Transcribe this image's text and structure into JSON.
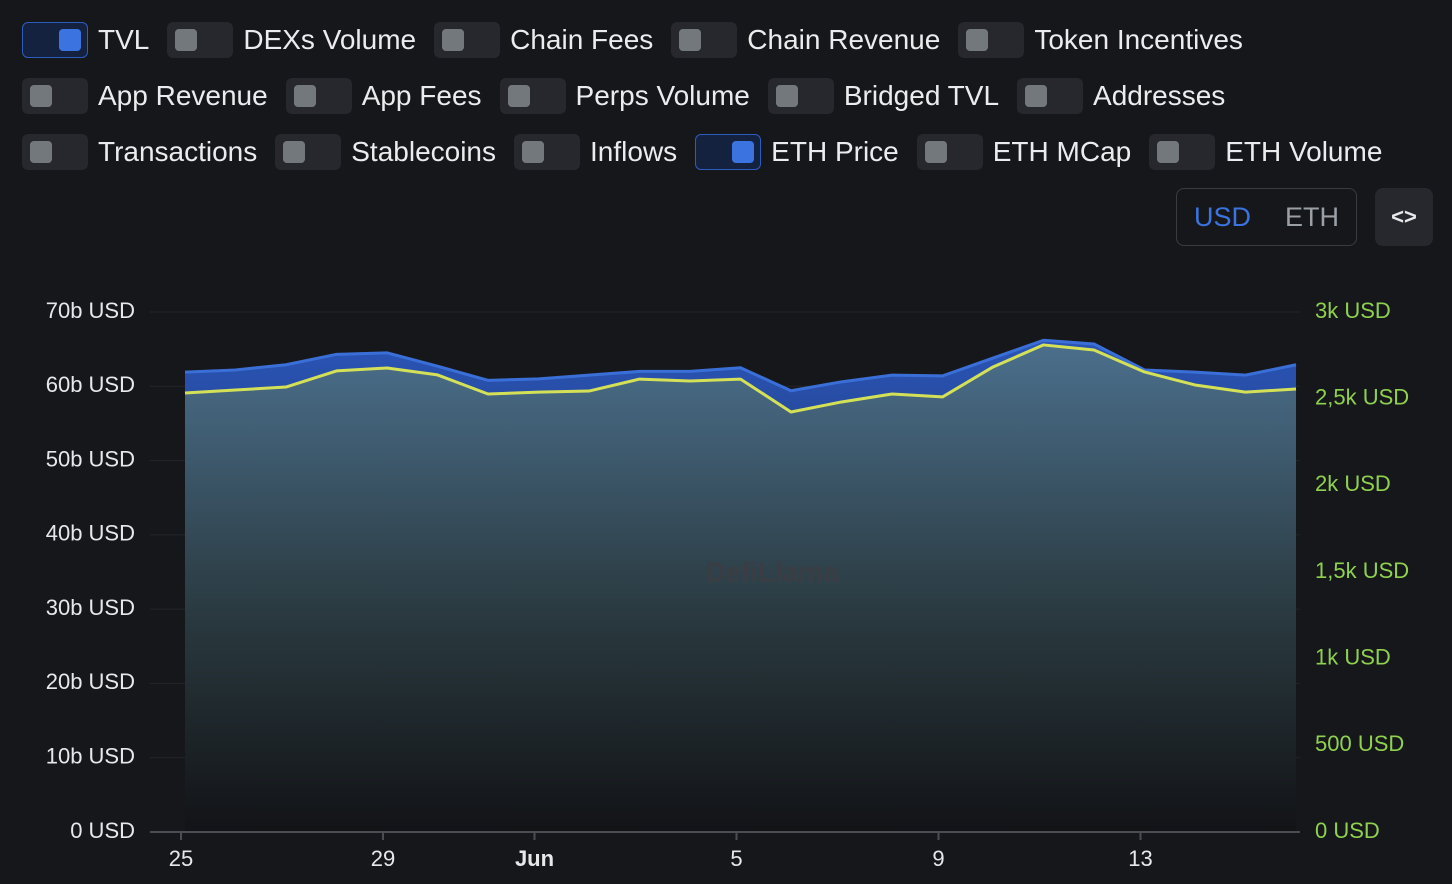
{
  "toggles": [
    [
      {
        "label": "TVL",
        "checked": true
      },
      {
        "label": "DEXs Volume",
        "checked": false
      },
      {
        "label": "Chain Fees",
        "checked": false
      },
      {
        "label": "Chain Revenue",
        "checked": false
      },
      {
        "label": "Token Incentives",
        "checked": false
      }
    ],
    [
      {
        "label": "App Revenue",
        "checked": false
      },
      {
        "label": "App Fees",
        "checked": false
      },
      {
        "label": "Perps Volume",
        "checked": false
      },
      {
        "label": "Bridged TVL",
        "checked": false
      },
      {
        "label": "Addresses",
        "checked": false
      }
    ],
    [
      {
        "label": "Transactions",
        "checked": false
      },
      {
        "label": "Stablecoins",
        "checked": false
      },
      {
        "label": "Inflows",
        "checked": false
      },
      {
        "label": "ETH Price",
        "checked": true
      },
      {
        "label": "ETH MCap",
        "checked": false
      },
      {
        "label": "ETH Volume",
        "checked": false
      }
    ]
  ],
  "currency": {
    "options": [
      "USD",
      "ETH"
    ],
    "selected": 0
  },
  "embed_button": "<>",
  "watermark": "DefiLlama",
  "chart_data": {
    "type": "area",
    "categories": [
      "25",
      null,
      null,
      null,
      "29",
      null,
      null,
      "Jun",
      null,
      null,
      null,
      "5",
      null,
      null,
      null,
      "9",
      null,
      null,
      null,
      "13",
      null,
      null,
      null
    ],
    "series": [
      {
        "name": "TVL",
        "color": "#3b6fd8",
        "values": [
          61.9,
          62.2,
          62.9,
          64.3,
          64.5,
          62.7,
          60.8,
          61.0,
          61.5,
          62.0,
          62.0,
          62.5,
          59.4,
          60.6,
          61.5,
          61.4,
          63.8,
          66.2,
          65.7,
          62.2,
          61.9,
          61.5,
          62.9
        ]
      },
      {
        "name": "ETH Price",
        "color": "#d4e157",
        "axis": "y2",
        "values": [
          2533,
          2550,
          2567,
          2660,
          2677,
          2637,
          2527,
          2538,
          2544,
          2613,
          2602,
          2613,
          2423,
          2481,
          2527,
          2510,
          2683,
          2810,
          2781,
          2654,
          2579,
          2538,
          2556
        ]
      }
    ],
    "ylim": [
      0,
      70
    ],
    "yticks": [
      {
        "value": 0,
        "label": "0 USD"
      },
      {
        "value": 10,
        "label": "10b USD"
      },
      {
        "value": 20,
        "label": "20b USD"
      },
      {
        "value": 30,
        "label": "30b USD"
      },
      {
        "value": 40,
        "label": "40b USD"
      },
      {
        "value": 50,
        "label": "50b USD"
      },
      {
        "value": 60,
        "label": "60b USD"
      },
      {
        "value": 70,
        "label": "70b USD"
      }
    ],
    "y2lim": [
      0,
      3000
    ],
    "y2ticks": [
      {
        "value": 0,
        "label": "0 USD"
      },
      {
        "value": 500,
        "label": "500 USD"
      },
      {
        "value": 1000,
        "label": "1k USD"
      },
      {
        "value": 1500,
        "label": "1,5k USD"
      },
      {
        "value": 2000,
        "label": "2k USD"
      },
      {
        "value": 2500,
        "label": "2,5k USD"
      },
      {
        "value": 3000,
        "label": "3k USD"
      }
    ],
    "y2color": "#8fd14f",
    "grid": true
  }
}
